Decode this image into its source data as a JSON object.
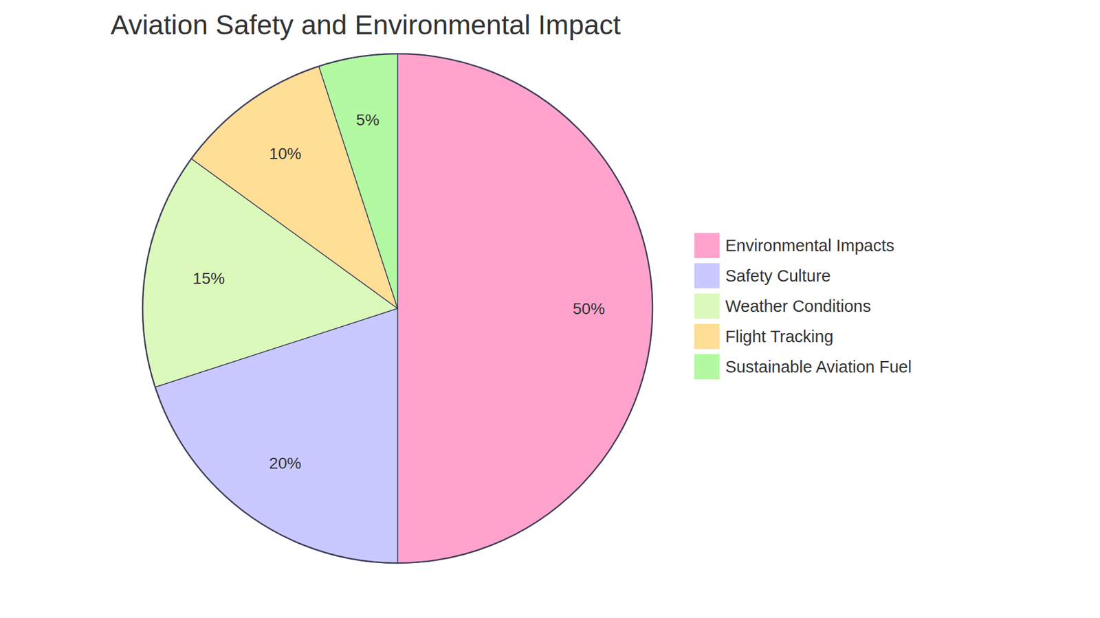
{
  "chart_data": {
    "type": "pie",
    "title": "Aviation Safety and Environmental Impact",
    "categories": [
      "Environmental Impacts",
      "Safety Culture",
      "Weather Conditions",
      "Flight Tracking",
      "Sustainable Aviation Fuel"
    ],
    "values": [
      50,
      20,
      15,
      10,
      5
    ],
    "value_labels": [
      "50%",
      "20%",
      "15%",
      "10%",
      "5%"
    ],
    "colors": [
      "#ffa3cd",
      "#c9c9ff",
      "#dbf9bb",
      "#ffde95",
      "#b3f9a2"
    ],
    "data_labels": true,
    "legend": "right"
  }
}
